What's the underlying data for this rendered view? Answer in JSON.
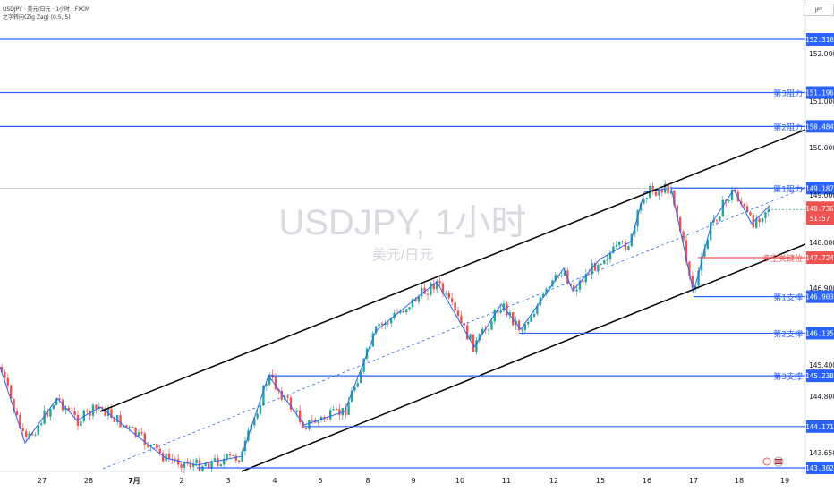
{
  "header": {
    "symbol_line": "USDJPY · 美元/日元 · 1小时 · FXCM",
    "indicator_line": "之字转向(Zig Zag) (0.5, 5)",
    "currency_button": "JPY"
  },
  "watermark": {
    "title": "USDJPY, 1小时",
    "subtitle": "美元/日元"
  },
  "colors": {
    "up": "#26a69a",
    "down": "#ef5350",
    "level_line": "#2962ff",
    "channel": "#000000",
    "zigzag": "#2962ff",
    "price_tag": "#ef5350"
  },
  "chart_data": {
    "type": "candlestick",
    "x_ticks": [
      "27",
      "28",
      "7月",
      "2",
      "3",
      "4",
      "5",
      "8",
      "9",
      "10",
      "11",
      "12",
      "15",
      "16",
      "17",
      "18",
      "19"
    ],
    "y_ticks": [
      "152.000",
      "151.000",
      "150.000",
      "149.000",
      "148.000",
      "146.900",
      "145.400",
      "144.800",
      "143.650"
    ],
    "ylim": [
      143.2,
      152.5
    ],
    "levels": [
      {
        "label": "",
        "value": 152.316,
        "tag": "152.316"
      },
      {
        "label": "第3阻力",
        "value": 151.196,
        "tag": "151.196"
      },
      {
        "label": "第2阻力",
        "value": 150.484,
        "tag": "150.484"
      },
      {
        "label": "第1阻力",
        "value": 149.187,
        "tag": "149.187"
      },
      {
        "label": "多空关键位",
        "value": 147.724,
        "tag": "147.724"
      },
      {
        "label": "第1支撑",
        "value": 146.903,
        "tag": "146.903"
      },
      {
        "label": "第2支撑",
        "value": 146.135,
        "tag": "146.135"
      },
      {
        "label": "第3支撑",
        "value": 145.238,
        "tag": "145.238"
      },
      {
        "label": "",
        "value": 144.171,
        "tag": "144.171"
      },
      {
        "label": "",
        "value": 143.302,
        "tag": "143.302"
      }
    ],
    "current_price": {
      "value": 148.736,
      "tag": "148.736",
      "countdown": "51:57"
    },
    "pivots": [
      [
        0,
        145.9
      ],
      [
        28,
        144.6
      ],
      [
        64,
        145.4
      ],
      [
        86,
        145.0
      ],
      [
        115,
        145.3
      ],
      [
        185,
        143.7
      ],
      [
        250,
        144.0
      ],
      [
        270,
        143.9
      ],
      [
        300,
        145.25
      ],
      [
        340,
        144.25
      ],
      [
        385,
        144.5
      ],
      [
        420,
        145.9
      ],
      [
        490,
        146.6
      ],
      [
        530,
        145.8
      ],
      [
        560,
        146.5
      ],
      [
        585,
        146.2
      ],
      [
        630,
        146.95
      ],
      [
        640,
        146.6
      ],
      [
        670,
        147.3
      ],
      [
        705,
        147.8
      ],
      [
        720,
        149.0
      ],
      [
        750,
        149.2
      ],
      [
        775,
        146.9
      ],
      [
        795,
        148.6
      ],
      [
        820,
        149.2
      ],
      [
        840,
        148.3
      ],
      [
        860,
        148.7
      ]
    ]
  }
}
